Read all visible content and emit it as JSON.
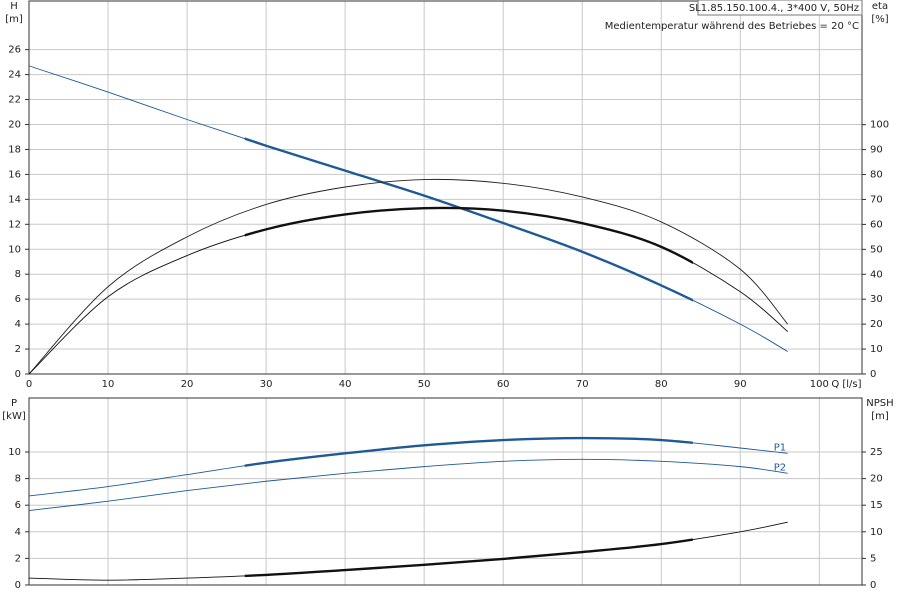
{
  "chart_data": [
    {
      "type": "line",
      "title": "SL1.85.150.100.4., 3*400 V, 50Hz",
      "subtitle": "Medientemperatur während des Betriebes = 20 °C",
      "ylabel": "H",
      "yunit": "[m]",
      "y2label": "eta",
      "y2unit": "[%]",
      "xlabel": "Q [l/s]",
      "xlim": [
        0,
        105.4
      ],
      "xticks": [
        0,
        10,
        20,
        30,
        40,
        50,
        60,
        70,
        80,
        90,
        100
      ],
      "xtick_labels": true,
      "ylim": [
        0,
        29.9
      ],
      "yticks": [
        0,
        2,
        4,
        6,
        8,
        10,
        12,
        14,
        16,
        18,
        20,
        22,
        24,
        26
      ],
      "y2lim": [
        0,
        149.6
      ],
      "y2ticks": [
        0,
        10,
        20,
        30,
        40,
        50,
        60,
        70,
        80,
        90,
        100
      ],
      "grid": true,
      "duty_range": [
        27.3,
        84
      ],
      "x": [
        0,
        10,
        20,
        30,
        40,
        50,
        60,
        70,
        80,
        90,
        96
      ],
      "series": [
        {
          "color": "#1f5a96",
          "highlight": true,
          "values": [
            24.7,
            22.6,
            20.4,
            18.3,
            16.3,
            14.3,
            12.1,
            9.8,
            7.1,
            4.0,
            1.8
          ]
        },
        {
          "color": "#222222",
          "highlight": false,
          "axis": "y2",
          "values": [
            0,
            35,
            55,
            68,
            75,
            78,
            76.5,
            71,
            61,
            42,
            20
          ]
        },
        {
          "color": "#111111",
          "highlight": true,
          "axis": "y2",
          "values": [
            0,
            31,
            47.5,
            58,
            64,
            66.5,
            65.5,
            60.5,
            51,
            33,
            17
          ]
        }
      ]
    },
    {
      "type": "line",
      "ylabel": "P",
      "yunit": "[kW]",
      "y2label": "NPSH",
      "y2unit": "[m]",
      "xlim": [
        0,
        105.4
      ],
      "xticks": [
        0,
        10,
        20,
        30,
        40,
        50,
        60,
        70,
        80,
        90,
        100
      ],
      "xtick_labels": false,
      "ylim": [
        0,
        14.06
      ],
      "yticks": [
        0,
        2,
        4,
        6,
        8,
        10
      ],
      "y2lim": [
        0,
        35.15
      ],
      "y2ticks": [
        0,
        5,
        10,
        15,
        20,
        25
      ],
      "grid": true,
      "duty_range": [
        27.3,
        84
      ],
      "x": [
        0,
        10,
        20,
        30,
        40,
        50,
        60,
        70,
        80,
        90,
        96
      ],
      "series": [
        {
          "name": "P1",
          "color": "#1f5a96",
          "highlight": true,
          "values": [
            6.7,
            7.4,
            8.3,
            9.2,
            9.9,
            10.5,
            10.9,
            11.05,
            10.9,
            10.3,
            9.9
          ]
        },
        {
          "name": "P2",
          "color": "#1f5a96",
          "highlight": false,
          "values": [
            5.6,
            6.3,
            7.1,
            7.8,
            8.4,
            8.9,
            9.3,
            9.45,
            9.3,
            8.9,
            8.4
          ]
        },
        {
          "color": "#111111",
          "highlight": true,
          "axis": "y2",
          "values": [
            1.3,
            0.9,
            1.3,
            1.9,
            2.8,
            3.8,
            4.9,
            6.2,
            7.7,
            10.0,
            11.8
          ]
        }
      ]
    }
  ]
}
